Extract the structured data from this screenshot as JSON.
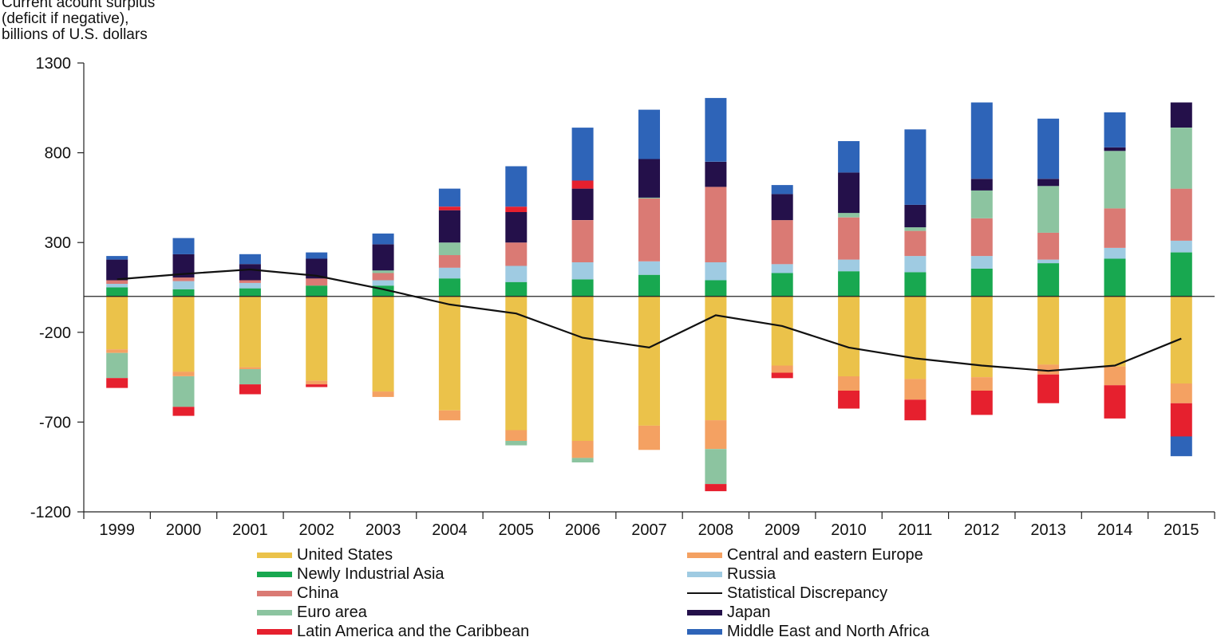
{
  "chart_data": {
    "type": "bar",
    "stacked": true,
    "ylabel": [
      "Current acount surplus",
      "(deficit if negative),",
      "billions of U.S. dollars"
    ],
    "ylim": [
      -1200,
      1300
    ],
    "yticks": [
      1300,
      800,
      300,
      -200,
      -700,
      -1200
    ],
    "categories": [
      "1999",
      "2000",
      "2001",
      "2002",
      "2003",
      "2004",
      "2005",
      "2006",
      "2007",
      "2008",
      "2009",
      "2010",
      "2011",
      "2012",
      "2013",
      "2014",
      "2015"
    ],
    "grid": false,
    "legend_position": "bottom",
    "series": [
      {
        "name": "United States",
        "color": "#EBC24A",
        "values": [
          -295,
          -420,
          -395,
          -470,
          -530,
          -635,
          -745,
          -805,
          -720,
          -690,
          -385,
          -445,
          -460,
          -450,
          -380,
          -390,
          -485
        ]
      },
      {
        "name": "Central and eastern Europe",
        "color": "#F4A162",
        "values": [
          -20,
          -25,
          -10,
          -20,
          -30,
          -55,
          -60,
          -95,
          -135,
          -160,
          -40,
          -80,
          -115,
          -75,
          -55,
          -105,
          -110
        ]
      },
      {
        "name": "Newly Industrial Asia",
        "color": "#18A850",
        "values": [
          50,
          40,
          45,
          60,
          60,
          100,
          80,
          95,
          120,
          90,
          130,
          140,
          135,
          155,
          185,
          210,
          245
        ]
      },
      {
        "name": "Russia",
        "color": "#9FCBE2",
        "values": [
          20,
          45,
          30,
          0,
          30,
          60,
          90,
          95,
          75,
          100,
          50,
          65,
          90,
          70,
          20,
          60,
          65
        ]
      },
      {
        "name": "China",
        "color": "#DA7A74",
        "values": [
          20,
          20,
          15,
          40,
          40,
          70,
          130,
          235,
          350,
          420,
          245,
          235,
          140,
          210,
          150,
          220,
          290
        ]
      },
      {
        "name": "Euro area",
        "color": "#8CC4A0",
        "values": [
          -140,
          -170,
          -85,
          0,
          15,
          70,
          -25,
          -25,
          5,
          -195,
          0,
          25,
          20,
          155,
          260,
          320,
          340
        ]
      },
      {
        "name": "Japan",
        "color": "#24104A",
        "values": [
          115,
          130,
          90,
          110,
          145,
          180,
          170,
          175,
          215,
          140,
          145,
          225,
          125,
          65,
          40,
          20,
          140
        ]
      },
      {
        "name": "Latin America and the Caribbean",
        "color": "#E6202E",
        "values": [
          -55,
          -50,
          -55,
          -15,
          0,
          20,
          30,
          45,
          0,
          -40,
          -30,
          -100,
          -115,
          -135,
          -160,
          -185,
          -185
        ]
      },
      {
        "name": "Middle East and North Africa",
        "color": "#2E64B8",
        "values": [
          20,
          90,
          55,
          35,
          60,
          100,
          225,
          295,
          275,
          355,
          50,
          175,
          420,
          425,
          335,
          195,
          0
        ]
      },
      {
        "name": "Middle East and North Africa (negative)",
        "color": "#2E64B8",
        "values": [
          0,
          0,
          0,
          0,
          0,
          0,
          0,
          0,
          0,
          0,
          0,
          0,
          0,
          0,
          0,
          0,
          -110
        ]
      }
    ],
    "line_series": {
      "name": "Statistical Discrepancy",
      "color": "#111111",
      "values": [
        95,
        125,
        150,
        115,
        40,
        -45,
        -95,
        -230,
        -285,
        -105,
        -165,
        -285,
        -345,
        -385,
        -415,
        -385,
        -235
      ]
    }
  },
  "legend": {
    "items": [
      {
        "label": "United States",
        "color": "#EBC24A",
        "kind": "bar"
      },
      {
        "label": "Central and eastern Europe",
        "color": "#F4A162",
        "kind": "bar"
      },
      {
        "label": "Newly Industrial Asia",
        "color": "#18A850",
        "kind": "bar"
      },
      {
        "label": "Russia",
        "color": "#9FCBE2",
        "kind": "bar"
      },
      {
        "label": "China",
        "color": "#DA7A74",
        "kind": "bar"
      },
      {
        "label": "Statistical Discrepancy",
        "color": "#111111",
        "kind": "line"
      },
      {
        "label": "Euro area",
        "color": "#8CC4A0",
        "kind": "bar"
      },
      {
        "label": "Japan",
        "color": "#24104A",
        "kind": "bar"
      },
      {
        "label": "Latin America and the Caribbean",
        "color": "#E6202E",
        "kind": "bar"
      },
      {
        "label": "Middle East and North Africa",
        "color": "#2E64B8",
        "kind": "bar"
      }
    ]
  }
}
